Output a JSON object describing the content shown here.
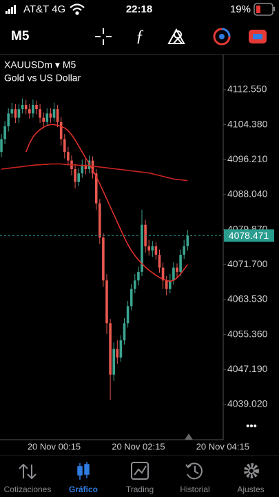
{
  "status_bar": {
    "carrier": "AT&T 4G",
    "time": "22:18",
    "battery": "19%"
  },
  "toolbar": {
    "timeframe": "M5"
  },
  "chart_header": {
    "symbol": "XAUUSDm ▾ M5",
    "description": "Gold vs US Dollar"
  },
  "chart_data": {
    "type": "candlestick",
    "categories": [
      null,
      null,
      null,
      null,
      null,
      null,
      null,
      null,
      null,
      null,
      null,
      null,
      null,
      null,
      null,
      "20 Nov 00:15",
      null,
      null,
      null,
      null,
      null,
      null,
      null,
      null,
      null,
      null,
      null,
      null,
      null,
      null,
      null,
      null,
      null,
      null,
      null,
      null,
      null,
      null,
      null,
      "20 Nov 02:15",
      null,
      null,
      null,
      null,
      null,
      null,
      null,
      null,
      null,
      null,
      null,
      null,
      null,
      null,
      null,
      null,
      null,
      null,
      null,
      null,
      null,
      null,
      null,
      "20 Nov 04:15"
    ],
    "open": [
      4098,
      4101,
      4104,
      4107,
      4108,
      4106,
      4108,
      4109,
      4108,
      4107,
      4109,
      4108,
      4106,
      4105,
      4107,
      4106,
      4108,
      4105,
      4101,
      4098,
      4096,
      4094,
      4091,
      4093,
      4095,
      4094,
      4096,
      4093,
      4086,
      4078,
      4068,
      4058,
      4046,
      4052,
      4050,
      4054,
      4058,
      4062,
      4066,
      4068,
      4070,
      4081,
      4076,
      4075,
      4076,
      4074,
      4071,
      4068,
      4066,
      4068,
      4071,
      4070,
      4074,
      4076,
      null,
      null,
      null,
      null,
      null,
      null,
      null,
      null,
      null,
      null
    ],
    "high": [
      4102.2,
      4105.2,
      4108.2,
      4109.5,
      4109.2,
      4109.2,
      4110.5,
      4110.2,
      4109.2,
      4110.2,
      4110,
      4109.2,
      4107.2,
      4108.2,
      4108.2,
      4109.5,
      4109,
      4106.2,
      4102.2,
      4099.2,
      4097.2,
      4095.2,
      4094.2,
      4096.2,
      4096.5,
      4097.2,
      4097,
      4094,
      4087,
      4079,
      4069.5,
      4059,
      4053.5,
      4054,
      4055.2,
      4059.2,
      4063.2,
      4067.2,
      4069.5,
      4071.2,
      4084.5,
      4082.2,
      4077.5,
      4077.2,
      4077,
      4075.2,
      4072.2,
      4069,
      4069.5,
      4072.2,
      4072,
      4075.2,
      4077.5,
      4079.8,
      null,
      null,
      null,
      null,
      null,
      null,
      null,
      null,
      null,
      null
    ],
    "low": [
      4096.8,
      4099.8,
      4102.8,
      4106,
      4104.8,
      4104.8,
      4107,
      4106.8,
      4105.8,
      4106,
      4106.8,
      4104.8,
      4103.5,
      4104,
      4104.8,
      4105,
      4103.8,
      4099.5,
      4096.5,
      4094.8,
      4092.5,
      4089.5,
      4090,
      4092,
      4092.8,
      4093,
      4091.8,
      4084.5,
      4076.5,
      4066.5,
      4055.5,
      4040.1,
      4044.5,
      4048.5,
      4049,
      4053,
      4057,
      4061,
      4065,
      4066.8,
      4069,
      4074.5,
      4073.8,
      4073.5,
      4072.8,
      4069.8,
      4066,
      4064.5,
      4065,
      4067,
      4068.5,
      4069,
      4073,
      4075,
      null,
      null,
      null,
      null,
      null,
      null,
      null,
      null,
      null,
      null
    ],
    "close": [
      4101,
      4104,
      4107,
      4108,
      4106,
      4108,
      4109,
      4108,
      4107,
      4109,
      4108,
      4106,
      4105,
      4107,
      4106,
      4108,
      4105,
      4101,
      4098,
      4096,
      4094,
      4091,
      4093,
      4095,
      4094,
      4096,
      4093,
      4086,
      4078,
      4068,
      4058,
      4046,
      4052,
      4050,
      4054,
      4058,
      4062,
      4066,
      4068,
      4070,
      4081,
      4076,
      4075,
      4076,
      4074,
      4071,
      4068,
      4066,
      4068,
      4071,
      4070,
      4074,
      4076,
      4078.471,
      null,
      null,
      null,
      null,
      null,
      null,
      null,
      null,
      null,
      null
    ],
    "up_color": "#3ba590",
    "down_color": "#e9584f",
    "moving_averages": [
      {
        "color": "#e0302a",
        "values": [
          null,
          null,
          null,
          null,
          null,
          null,
          null,
          4098,
          4100,
          4101.5,
          4102.5,
          4103.2,
          4103.8,
          4104.2,
          4104.4,
          4104.4,
          4104.2,
          4104,
          4103.6,
          4103,
          4102,
          4100.8,
          4099.4,
          4098,
          4096.6,
          4095.2,
          4093.8,
          4092.2,
          4090.6,
          4088.8,
          4087,
          4085.2,
          4083.4,
          4081.6,
          4079.8,
          4078,
          4076.4,
          4075,
          4073.8,
          4072.8,
          4071.9,
          4071.1,
          4070.4,
          4069.8,
          4069.2,
          4068.7,
          4068.3,
          4068,
          4067.8,
          4068,
          4068.6,
          4069.5,
          4070.6,
          4071.7,
          null,
          null,
          null,
          null,
          null,
          null,
          null,
          null,
          null,
          null
        ]
      },
      {
        "color": "#c8241f",
        "values": [
          4094,
          4094.1,
          4094.2,
          4094.3,
          4094.4,
          4094.5,
          4094.6,
          4094.7,
          4094.8,
          4094.9,
          4095,
          4095,
          4095.1,
          4095.1,
          4095.2,
          4095.2,
          4095.2,
          4095.2,
          4095.1,
          4095.1,
          4095,
          4095,
          4094.9,
          4094.9,
          4094.8,
          4094.8,
          4094.7,
          4094.6,
          4094.5,
          4094.4,
          4094.3,
          4094.2,
          4094.1,
          4094,
          4093.9,
          4093.8,
          4093.7,
          4093.6,
          4093.5,
          4093.4,
          4093.3,
          4093.2,
          4093.1,
          4092.9,
          4092.7,
          4092.5,
          4092.3,
          4092.1,
          4091.9,
          4091.7,
          4091.6,
          4091.5,
          4091.4,
          4091.3,
          null,
          null,
          null,
          null,
          null,
          null,
          null,
          null,
          null,
          null
        ]
      }
    ],
    "current_price": 4078.471,
    "current_price_color": "#2a9d8f",
    "ylim": [
      4030.8,
      4120.6
    ],
    "yticks": [
      {
        "value": 4039.02,
        "label": "4039.020"
      },
      {
        "value": 4047.19,
        "label": "4047.190"
      },
      {
        "value": 4055.36,
        "label": "4055.360"
      },
      {
        "value": 4063.53,
        "label": "4063.530"
      },
      {
        "value": 4071.7,
        "label": "4071.700"
      },
      {
        "value": 4079.87,
        "label": "4079.870"
      },
      {
        "value": 4088.04,
        "label": "4088.040"
      },
      {
        "value": 4096.21,
        "label": "4096.210"
      },
      {
        "value": 4104.38,
        "label": "4104.380"
      },
      {
        "value": 4112.55,
        "label": "4112.550"
      }
    ],
    "grid": false
  },
  "more_button": "•••",
  "tab_bar": {
    "tabs": [
      "Cotizaciones",
      "Gráfico",
      "Trading",
      "Historial",
      "Ajustes"
    ],
    "active": 1
  }
}
